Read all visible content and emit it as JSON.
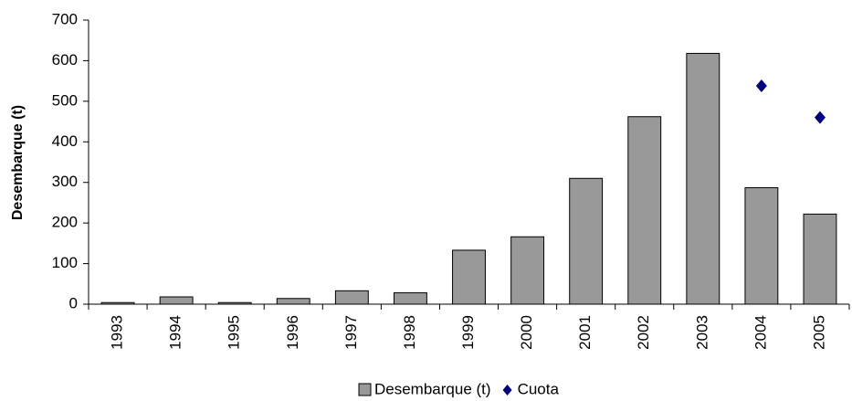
{
  "chart_data": {
    "type": "bar",
    "y_label": "Desembarque (t)",
    "categories": [
      "1993",
      "1994",
      "1995",
      "1996",
      "1997",
      "1998",
      "1999",
      "2000",
      "2001",
      "2002",
      "2003",
      "2004",
      "2005"
    ],
    "series": [
      {
        "name": "Desembarque (t)",
        "type": "bar",
        "color": "#999999",
        "values": [
          4,
          18,
          4,
          14,
          33,
          28,
          133,
          166,
          310,
          462,
          618,
          287,
          222
        ]
      },
      {
        "name": "Cuota",
        "type": "scatter",
        "color": "#000080",
        "values": [
          null,
          null,
          null,
          null,
          null,
          null,
          null,
          null,
          null,
          null,
          null,
          538,
          460
        ]
      }
    ],
    "ylim": [
      0,
      700
    ],
    "yticks": [
      0,
      100,
      200,
      300,
      400,
      500,
      600,
      700
    ],
    "grid": false,
    "legend": "bottom"
  }
}
